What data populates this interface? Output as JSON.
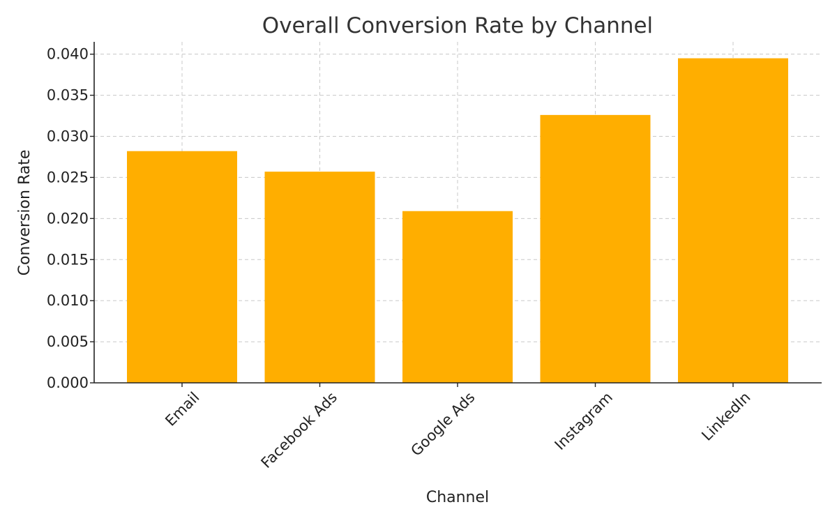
{
  "chart_data": {
    "type": "bar",
    "title": "Overall Conversion Rate by Channel",
    "xlabel": "Channel",
    "ylabel": "Conversion Rate",
    "categories": [
      "Email",
      "Facebook Ads",
      "Google Ads",
      "Instagram",
      "LinkedIn"
    ],
    "values": [
      0.0282,
      0.0257,
      0.0209,
      0.0326,
      0.0395
    ],
    "ylim": [
      0,
      0.0415
    ],
    "yticks": [
      "0.000",
      "0.005",
      "0.010",
      "0.015",
      "0.020",
      "0.025",
      "0.030",
      "0.035",
      "0.040"
    ],
    "bar_color": "#FFAE00",
    "grid": true,
    "xtick_rotation_deg": 45
  }
}
